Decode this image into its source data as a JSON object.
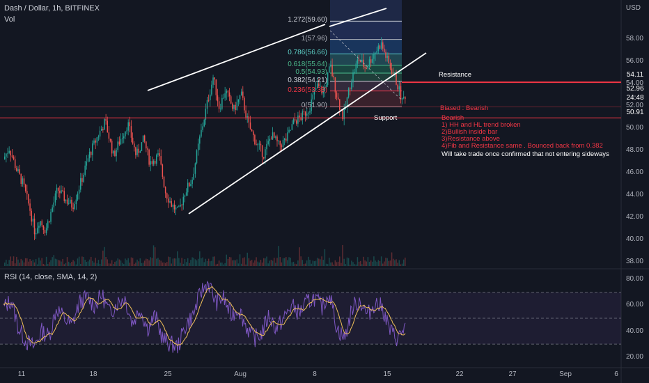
{
  "header": {
    "symbol_title": "Dash / Dollar, 1h, BITFINEX",
    "volume_label": "Vol",
    "currency": "USD",
    "rsi_label": "RSI (14, close, SMA, 14, 2)"
  },
  "chart_data": [
    {
      "type": "candlestick",
      "title": "Dash / Dollar, 1h, BITFINEX",
      "ylabel": "USD",
      "ylim": [
        37.6,
        61.5
      ],
      "y_ticks": [
        "58.00",
        "56.00",
        "54.00",
        "52.00",
        "50.00",
        "48.00",
        "46.00",
        "44.00",
        "42.00",
        "40.00",
        "38.00"
      ],
      "y_tick_values": [
        58,
        56,
        54,
        52,
        50,
        48,
        46,
        44,
        42,
        40,
        38
      ],
      "x_ticks": [
        "11",
        "18",
        "25",
        "Aug",
        "8",
        "15",
        "22",
        "27",
        "Sep",
        "6"
      ],
      "price_path": [
        [
          0,
          47.2
        ],
        [
          0.8,
          48.2
        ],
        [
          1.8,
          46.2
        ],
        [
          2.6,
          45.0
        ],
        [
          3.5,
          42.8
        ],
        [
          4.2,
          40.6
        ],
        [
          4.8,
          41.8
        ],
        [
          5.6,
          40.8
        ],
        [
          6.4,
          42.6
        ],
        [
          7.2,
          44.5
        ],
        [
          8.2,
          43.6
        ],
        [
          9.2,
          43.0
        ],
        [
          10.4,
          45.4
        ],
        [
          11.4,
          47.6
        ],
        [
          12.6,
          49.4
        ],
        [
          13.5,
          50.6
        ],
        [
          14.6,
          47.5
        ],
        [
          15.4,
          48.8
        ],
        [
          16.5,
          50.4
        ],
        [
          17.6,
          47.5
        ],
        [
          18.6,
          49.0
        ],
        [
          19.4,
          46.9
        ],
        [
          20.6,
          47.5
        ],
        [
          21.5,
          44.2
        ],
        [
          22.3,
          43.1
        ],
        [
          23.2,
          42.4
        ],
        [
          24.0,
          44.2
        ],
        [
          25.0,
          45.4
        ],
        [
          26.0,
          49.0
        ],
        [
          27.0,
          52.2
        ],
        [
          27.8,
          54.6
        ],
        [
          28.6,
          51.8
        ],
        [
          29.4,
          53.4
        ],
        [
          30.5,
          51.6
        ],
        [
          31.5,
          53.0
        ],
        [
          32.5,
          50.2
        ],
        [
          33.5,
          48.6
        ],
        [
          34.5,
          47.6
        ],
        [
          35.5,
          49.4
        ],
        [
          36.5,
          48.4
        ],
        [
          37.5,
          49.0
        ],
        [
          38.5,
          50.6
        ],
        [
          39.5,
          51.0
        ],
        [
          40.5,
          51.8
        ],
        [
          41.5,
          53.8
        ],
        [
          42.4,
          53.2
        ],
        [
          43.3,
          55.6
        ],
        [
          44.2,
          52.8
        ],
        [
          45.0,
          50.9
        ],
        [
          46.0,
          54.2
        ],
        [
          47.0,
          56.2
        ],
        [
          48.0,
          55.4
        ],
        [
          49.0,
          56.6
        ],
        [
          50.0,
          57.6
        ],
        [
          51.0,
          55.8
        ],
        [
          51.8,
          54.6
        ],
        [
          52.4,
          53.4
        ],
        [
          52.8,
          52.4
        ],
        [
          53.2,
          52.96
        ]
      ],
      "volume_scale_max": 1.0
    },
    {
      "type": "line",
      "title": "RSI (14, close, SMA, 14, 2)",
      "ylim": [
        15,
        85
      ],
      "y_ticks": [
        "80.00",
        "60.00",
        "40.00",
        "20.00"
      ],
      "y_tick_values": [
        80,
        60,
        40,
        20
      ],
      "bands": [
        70,
        50,
        30
      ],
      "rsi_path": [
        [
          0,
          58
        ],
        [
          1,
          64
        ],
        [
          2,
          42
        ],
        [
          3,
          32
        ],
        [
          4,
          28
        ],
        [
          5,
          40
        ],
        [
          6,
          36
        ],
        [
          7,
          58
        ],
        [
          8,
          50
        ],
        [
          9,
          44
        ],
        [
          10,
          62
        ],
        [
          11,
          66
        ],
        [
          12,
          60
        ],
        [
          13,
          68
        ],
        [
          14,
          54
        ],
        [
          15,
          62
        ],
        [
          16,
          66
        ],
        [
          17,
          46
        ],
        [
          18,
          58
        ],
        [
          19,
          42
        ],
        [
          20,
          52
        ],
        [
          21,
          34
        ],
        [
          22,
          30
        ],
        [
          23,
          28
        ],
        [
          24,
          44
        ],
        [
          25,
          52
        ],
        [
          26,
          70
        ],
        [
          27,
          78
        ],
        [
          28,
          62
        ],
        [
          29,
          66
        ],
        [
          30,
          52
        ],
        [
          31,
          58
        ],
        [
          32,
          44
        ],
        [
          33,
          34
        ],
        [
          34,
          38
        ],
        [
          35,
          52
        ],
        [
          36,
          42
        ],
        [
          37,
          50
        ],
        [
          38,
          60
        ],
        [
          39,
          54
        ],
        [
          40,
          62
        ],
        [
          41,
          66
        ],
        [
          42,
          58
        ],
        [
          43,
          70
        ],
        [
          44,
          42
        ],
        [
          45,
          34
        ],
        [
          46,
          58
        ],
        [
          47,
          64
        ],
        [
          48,
          52
        ],
        [
          49,
          62
        ],
        [
          50,
          58
        ],
        [
          51,
          40
        ],
        [
          52,
          34
        ],
        [
          53,
          44
        ]
      ]
    }
  ],
  "price_tags": [
    {
      "value": "54.11",
      "color": "#f23645"
    },
    {
      "value": "52.96",
      "color": "#f23645"
    },
    {
      "value": "24:48",
      "color": "#f23645"
    },
    {
      "value": "50.91",
      "color": "#f23645"
    }
  ],
  "fib_levels": [
    {
      "label": "1.272(59.60)",
      "value": 59.6,
      "color": "#d1d4dc"
    },
    {
      "label": "1(57.96)",
      "value": 57.96,
      "color": "#b2b5be"
    },
    {
      "label": "0.786(56.66)",
      "value": 56.66,
      "color": "#5ed0c8"
    },
    {
      "label": "0.618(55.64)",
      "value": 55.64,
      "color": "#4dbd8e"
    },
    {
      "label": "0.5(54.93)",
      "value": 54.93,
      "color": "#4dbd8e"
    },
    {
      "label": "0.382(54.21)",
      "value": 54.21,
      "color": "#d1d4dc"
    },
    {
      "label": "0.236(53.33)",
      "value": 53.33,
      "color": "#f23645"
    },
    {
      "label": "0(51.90)",
      "value": 51.9,
      "color": "#b2b5be"
    }
  ],
  "annotations": {
    "resistance": "Resistance",
    "support": "Support",
    "biased": "Biased : Bearish",
    "notes": [
      "Bearish",
      "1) HH and HL trend broken",
      "2)Bullish inside bar",
      "3)Resistance above",
      "4)Fib and Resistance same . Bounced back from 0.382",
      "Will take trade once confirmed that not entering sideways"
    ]
  },
  "colors": {
    "background": "#131722",
    "up": "#26a69a",
    "down": "#ef5350",
    "rsi_line": "#7e57c2",
    "rsi_ma": "#f0c05a",
    "resistance_line": "#f23645",
    "trendline": "#ffffff"
  }
}
